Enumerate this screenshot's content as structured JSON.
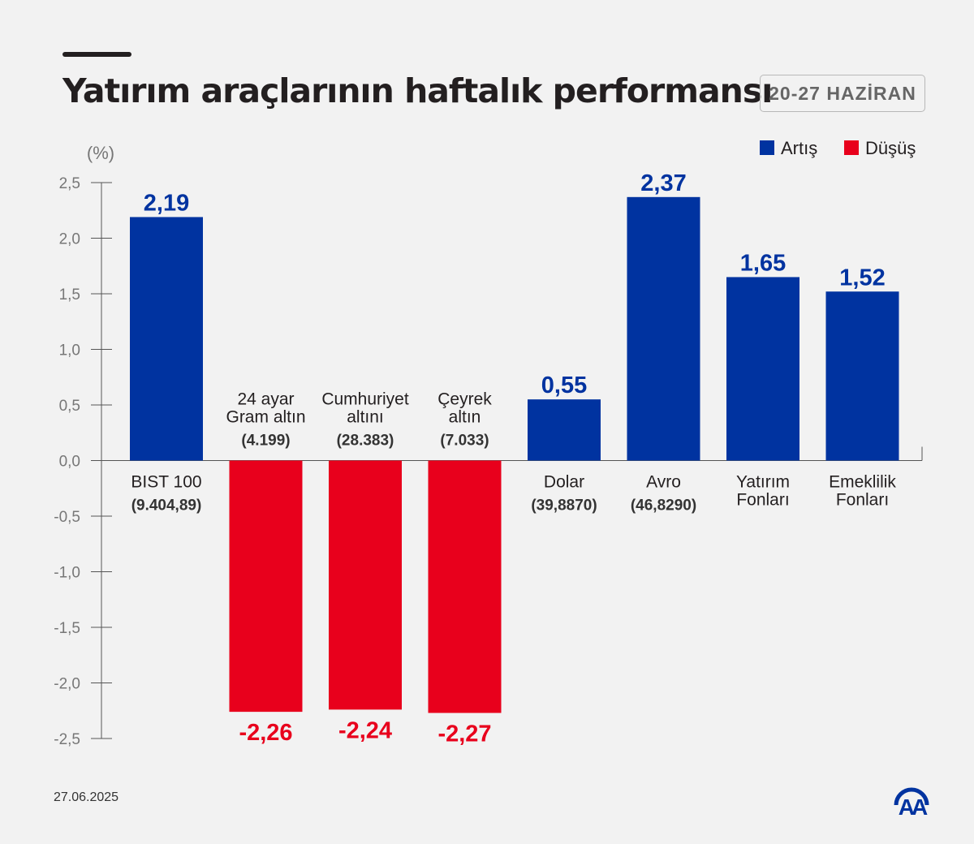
{
  "header": {
    "title": "Yatırım araçlarının haftalık performansı",
    "period": "20-27 HAZİRAN"
  },
  "footer": {
    "date": "27.06.2025",
    "logo_text": "AA"
  },
  "colors": {
    "increase": "#0033a0",
    "decrease": "#e8001c",
    "background": "#f2f2f2"
  },
  "chart_data": {
    "type": "bar",
    "ylabel": "(%)",
    "ylim": [
      -2.5,
      2.5
    ],
    "yticks": [
      "2,5",
      "2,0",
      "1,5",
      "1,0",
      "0,5",
      "0,0",
      "-0,5",
      "-1,0",
      "-1,5",
      "-2,0",
      "-2,5"
    ],
    "legend": [
      {
        "name": "Artış",
        "color": "#0033a0"
      },
      {
        "name": "Düşüş",
        "color": "#e8001c"
      }
    ],
    "legend_position": "top-right",
    "grid": false,
    "categories": [
      {
        "name": "BIST 100",
        "sub": "(9.404,89)"
      },
      {
        "name": "24 ayar\nGram altın",
        "sub": "(4.199)"
      },
      {
        "name": "Cumhuriyet\naltını",
        "sub": "(28.383)"
      },
      {
        "name": "Çeyrek\naltın",
        "sub": "(7.033)"
      },
      {
        "name": "Dolar",
        "sub": "(39,8870)"
      },
      {
        "name": "Avro",
        "sub": "(46,8290)"
      },
      {
        "name": "Yatırım\nFonları",
        "sub": ""
      },
      {
        "name": "Emeklilik\nFonları",
        "sub": ""
      }
    ],
    "values": [
      2.19,
      -2.26,
      -2.24,
      -2.27,
      0.55,
      2.37,
      1.65,
      1.52
    ],
    "value_labels": [
      "2,19",
      "-2,26",
      "-2,24",
      "-2,27",
      "0,55",
      "2,37",
      "1,65",
      "1,52"
    ]
  }
}
